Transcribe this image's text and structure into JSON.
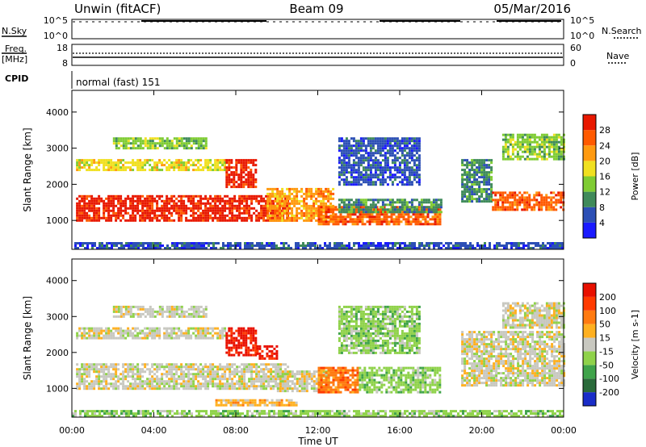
{
  "header": {
    "station": "Unwin (fitACF)",
    "beam": "Beam 09",
    "date": "05/Mar/2016"
  },
  "side_labels": {
    "nsky": "N.Sky",
    "nsearch": "N.Search",
    "freq": "Freq.",
    "freq_unit": "[MHz]",
    "nave": "Nave",
    "cpid": "CPID"
  },
  "cpid_text": "normal (fast) 151",
  "noise_panel": {
    "left_ticks": [
      "10^5",
      "10^0"
    ],
    "right_ticks": [
      "10^5",
      "10^0"
    ]
  },
  "freq_panel": {
    "left_ticks": [
      "18",
      "8"
    ],
    "right_ticks": [
      "60",
      "0"
    ]
  },
  "x_axis": {
    "label": "Time UT",
    "ticks": [
      "00:00",
      "04:00",
      "08:00",
      "12:00",
      "16:00",
      "20:00",
      "00:00"
    ]
  },
  "chart_data": [
    {
      "type": "heatmap",
      "quantity": "Power",
      "ylabel": "Slant Range [km]",
      "xlabel": "",
      "y_ticks": [
        1000,
        2000,
        3000,
        4000
      ],
      "ylim": [
        200,
        4600
      ],
      "colorbar_label": "Power [dB]",
      "colorbar_ticks": [
        "4",
        "8",
        "12",
        "16",
        "20",
        "24",
        "28"
      ],
      "colorbar_colors": [
        "#1a1aff",
        "#2c4fb5",
        "#3f8a5a",
        "#7fcc33",
        "#f0e020",
        "#ff9a10",
        "#ff5a00",
        "#e81800"
      ],
      "regions": [
        {
          "t0": 0.2,
          "t1": 10.5,
          "r0": 1000,
          "r1": 1700,
          "level": 7
        },
        {
          "t0": 0.2,
          "t1": 7.5,
          "r0": 2400,
          "r1": 2700,
          "level": 4
        },
        {
          "t0": 2.0,
          "t1": 6.5,
          "r0": 3000,
          "r1": 3300,
          "level": 3
        },
        {
          "t0": 7.5,
          "t1": 9.0,
          "r0": 1900,
          "r1": 2700,
          "level": 7
        },
        {
          "t0": 9.5,
          "t1": 12.8,
          "r0": 1000,
          "r1": 1900,
          "level": 5
        },
        {
          "t0": 12.0,
          "t1": 18.0,
          "r0": 900,
          "r1": 1400,
          "level": 6
        },
        {
          "t0": 13.0,
          "t1": 18.0,
          "r0": 1200,
          "r1": 1600,
          "level": 2
        },
        {
          "t0": 13.0,
          "t1": 17.0,
          "r0": 2000,
          "r1": 3300,
          "level": 1
        },
        {
          "t0": 19.0,
          "t1": 20.5,
          "r0": 1500,
          "r1": 2700,
          "level": 2
        },
        {
          "t0": 20.5,
          "t1": 24.0,
          "r0": 1300,
          "r1": 1800,
          "level": 6
        },
        {
          "t0": 21.0,
          "t1": 24.0,
          "r0": 2700,
          "r1": 3400,
          "level": 3
        },
        {
          "t0": 0.0,
          "t1": 24.0,
          "r0": 200,
          "r1": 400,
          "level": 1
        }
      ]
    },
    {
      "type": "heatmap",
      "quantity": "Velocity",
      "ylabel": "Slant Range [km]",
      "xlabel": "Time UT",
      "y_ticks": [
        1000,
        2000,
        3000,
        4000
      ],
      "ylim": [
        200,
        4600
      ],
      "colorbar_label": "Velocity [m s-1]",
      "colorbar_ticks": [
        "200",
        "100",
        "50",
        "15",
        "-15",
        "-50",
        "-100",
        "-200"
      ],
      "colorbar_colors": [
        "#1a2dc8",
        "#2a6a3a",
        "#3fa34a",
        "#8fd24a",
        "#c8c8c0",
        "#ffb020",
        "#ff7a10",
        "#ff3a00",
        "#e81000"
      ],
      "regions": [
        {
          "t0": 0.2,
          "t1": 10.5,
          "r0": 1000,
          "r1": 1700,
          "level": 4
        },
        {
          "t0": 0.2,
          "t1": 7.5,
          "r0": 2400,
          "r1": 2700,
          "level": 4
        },
        {
          "t0": 2.0,
          "t1": 6.5,
          "r0": 3000,
          "r1": 3300,
          "level": 4
        },
        {
          "t0": 7.5,
          "t1": 9.0,
          "r0": 1900,
          "r1": 2700,
          "level": 8
        },
        {
          "t0": 9.0,
          "t1": 10.0,
          "r0": 1800,
          "r1": 2200,
          "level": 8
        },
        {
          "t0": 10.0,
          "t1": 12.5,
          "r0": 900,
          "r1": 1500,
          "level": 4
        },
        {
          "t0": 12.0,
          "t1": 14.0,
          "r0": 900,
          "r1": 1600,
          "level": 6
        },
        {
          "t0": 14.0,
          "t1": 18.0,
          "r0": 900,
          "r1": 1600,
          "level": 3
        },
        {
          "t0": 13.0,
          "t1": 17.0,
          "r0": 2000,
          "r1": 3300,
          "level": 3
        },
        {
          "t0": 7.0,
          "t1": 11.0,
          "r0": 550,
          "r1": 700,
          "level": 5
        },
        {
          "t0": 19.0,
          "t1": 24.0,
          "r0": 1100,
          "r1": 2600,
          "level": 4
        },
        {
          "t0": 21.0,
          "t1": 24.0,
          "r0": 2700,
          "r1": 3400,
          "level": 4
        },
        {
          "t0": 0.0,
          "t1": 24.0,
          "r0": 200,
          "r1": 400,
          "level": 3
        }
      ]
    }
  ]
}
